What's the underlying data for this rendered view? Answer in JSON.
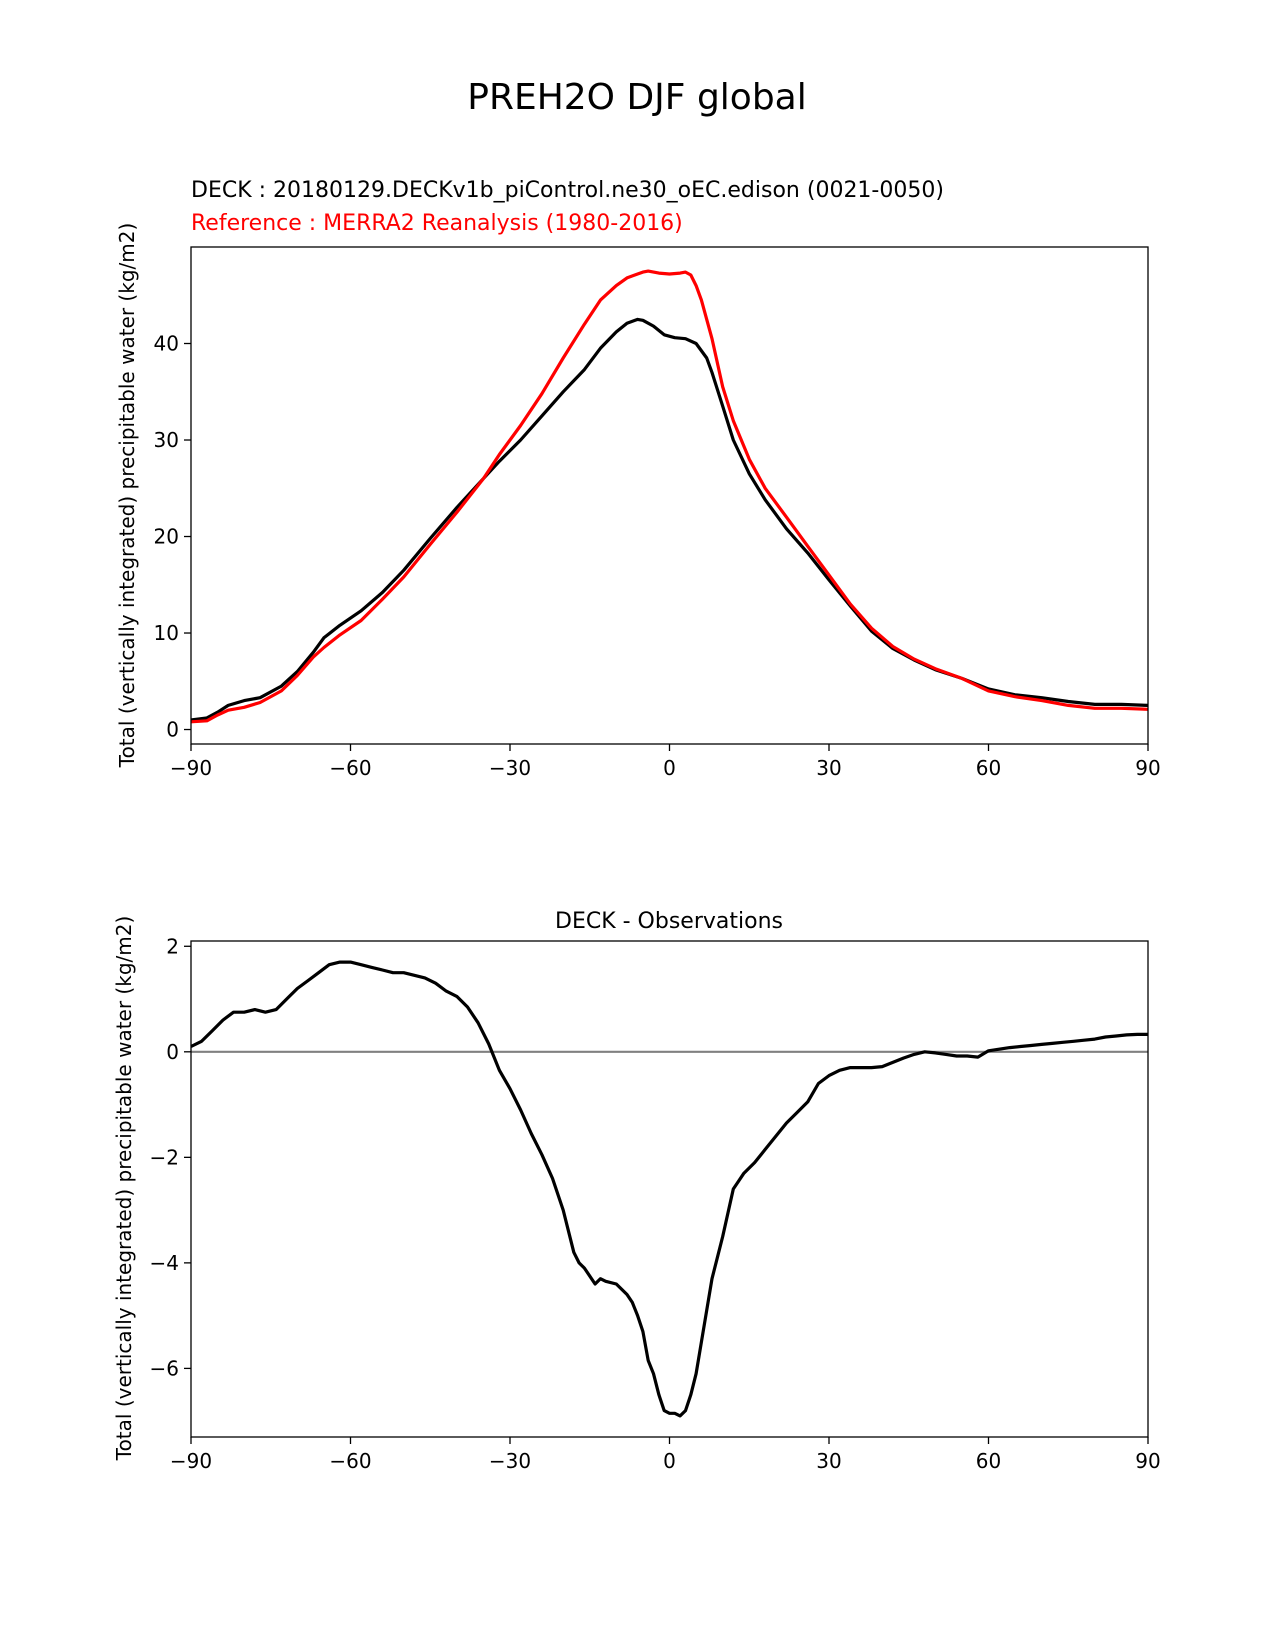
{
  "figure_title": "PREH2O DJF global",
  "panel1_header": {
    "test": "DECK : 20180129.DECKv1b_piControl.ne30_oEC.edison (0021-0050)",
    "reference": "Reference : MERRA2 Reanalysis (1980-2016)"
  },
  "colors": {
    "test": "#000000",
    "reference": "#ff0000",
    "zero_line": "#808080"
  },
  "chart_data": [
    {
      "type": "line",
      "title": "",
      "xlabel": "",
      "ylabel": "Total (vertically integrated) precipitable water (kg/m2)",
      "xlim": [
        -90,
        90
      ],
      "ylim": [
        -1.5,
        50
      ],
      "xticks": [
        -90,
        -60,
        -30,
        0,
        30,
        60,
        90
      ],
      "xtick_labels": [
        "−90",
        "−60",
        "−30",
        "0",
        "30",
        "60",
        "90"
      ],
      "yticks": [
        0,
        10,
        20,
        30,
        40
      ],
      "ytick_labels": [
        "0",
        "10",
        "20",
        "30",
        "40"
      ],
      "series": [
        {
          "name": "DECK",
          "color": "#000000",
          "x": [
            -90,
            -87,
            -85,
            -83,
            -80,
            -77,
            -73,
            -70,
            -67,
            -65,
            -62,
            -58,
            -54,
            -50,
            -45,
            -40,
            -35,
            -32,
            -28,
            -24,
            -20,
            -16,
            -13,
            -10,
            -8,
            -6,
            -5,
            -3,
            -1,
            1,
            3,
            5,
            7,
            8,
            10,
            12,
            15,
            18,
            22,
            26,
            30,
            34,
            38,
            42,
            46,
            50,
            55,
            60,
            65,
            70,
            75,
            80,
            85,
            90
          ],
          "values": [
            1.0,
            1.2,
            1.8,
            2.5,
            3.0,
            3.3,
            4.5,
            6.0,
            8.0,
            9.5,
            10.8,
            12.3,
            14.2,
            16.5,
            19.8,
            23.0,
            26.0,
            27.8,
            30.0,
            32.5,
            35.0,
            37.3,
            39.5,
            41.2,
            42.1,
            42.5,
            42.4,
            41.8,
            40.9,
            40.6,
            40.5,
            40.0,
            38.5,
            37.0,
            33.5,
            30.0,
            26.5,
            23.8,
            20.8,
            18.3,
            15.5,
            12.8,
            10.2,
            8.4,
            7.2,
            6.2,
            5.3,
            4.2,
            3.6,
            3.3,
            2.9,
            2.6,
            2.6,
            2.5
          ]
        },
        {
          "name": "MERRA2",
          "color": "#ff0000",
          "x": [
            -90,
            -87,
            -85,
            -83,
            -80,
            -77,
            -73,
            -70,
            -67,
            -65,
            -62,
            -58,
            -54,
            -50,
            -45,
            -40,
            -35,
            -32,
            -28,
            -24,
            -20,
            -16,
            -13,
            -10,
            -8,
            -6,
            -5,
            -4,
            -2,
            0,
            2,
            3,
            4,
            5,
            6,
            8,
            10,
            12,
            15,
            18,
            22,
            26,
            30,
            34,
            38,
            42,
            46,
            50,
            55,
            60,
            65,
            70,
            75,
            80,
            85,
            90
          ],
          "values": [
            0.8,
            0.9,
            1.5,
            2.0,
            2.3,
            2.8,
            4.0,
            5.6,
            7.5,
            8.5,
            9.8,
            11.3,
            13.5,
            15.8,
            19.2,
            22.5,
            26.0,
            28.5,
            31.5,
            34.8,
            38.5,
            42.0,
            44.5,
            46.0,
            46.8,
            47.2,
            47.4,
            47.5,
            47.3,
            47.2,
            47.3,
            47.4,
            47.1,
            46.0,
            44.5,
            40.5,
            35.5,
            32.0,
            28.0,
            25.0,
            22.0,
            19.0,
            16.0,
            13.0,
            10.5,
            8.6,
            7.3,
            6.3,
            5.3,
            4.0,
            3.4,
            3.0,
            2.5,
            2.2,
            2.2,
            2.1
          ]
        }
      ]
    },
    {
      "type": "line",
      "title": "DECK - Observations",
      "xlabel": "",
      "ylabel": "Total (vertically integrated) precipitable water (kg/m2)",
      "xlim": [
        -90,
        90
      ],
      "ylim": [
        -7.3,
        2.1
      ],
      "xticks": [
        -90,
        -60,
        -30,
        0,
        30,
        60,
        90
      ],
      "xtick_labels": [
        "−90",
        "−60",
        "−30",
        "0",
        "30",
        "60",
        "90"
      ],
      "yticks": [
        2,
        0,
        -2,
        -4,
        -6
      ],
      "ytick_labels": [
        "2",
        "0",
        "−2",
        "−4",
        "−6"
      ],
      "zero_line": 0,
      "series": [
        {
          "name": "DECK - Observations",
          "color": "#000000",
          "x": [
            -90,
            -88,
            -86,
            -84,
            -82,
            -80,
            -78,
            -76,
            -74,
            -72,
            -70,
            -68,
            -66,
            -64,
            -62,
            -60,
            -58,
            -56,
            -54,
            -52,
            -50,
            -48,
            -46,
            -44,
            -42,
            -40,
            -38,
            -36,
            -34,
            -32,
            -30,
            -28,
            -26,
            -24,
            -22,
            -20,
            -18,
            -17,
            -16,
            -14,
            -13,
            -12,
            -10,
            -8,
            -7,
            -6,
            -5,
            -4,
            -3,
            -2,
            -1,
            0,
            1,
            2,
            3,
            4,
            5,
            6,
            7,
            8,
            10,
            12,
            13,
            14,
            16,
            18,
            20,
            22,
            24,
            26,
            28,
            30,
            32,
            34,
            36,
            38,
            40,
            42,
            44,
            46,
            48,
            50,
            52,
            54,
            56,
            58,
            60,
            62,
            64,
            66,
            68,
            70,
            72,
            74,
            76,
            78,
            80,
            82,
            84,
            86,
            88,
            90
          ],
          "values": [
            0.1,
            0.2,
            0.4,
            0.6,
            0.75,
            0.75,
            0.8,
            0.75,
            0.8,
            1.0,
            1.2,
            1.35,
            1.5,
            1.65,
            1.7,
            1.7,
            1.65,
            1.6,
            1.55,
            1.5,
            1.5,
            1.45,
            1.4,
            1.3,
            1.15,
            1.05,
            0.85,
            0.55,
            0.15,
            -0.35,
            -0.7,
            -1.1,
            -1.55,
            -1.95,
            -2.4,
            -3.0,
            -3.8,
            -4.0,
            -4.1,
            -4.4,
            -4.3,
            -4.35,
            -4.4,
            -4.6,
            -4.75,
            -5.0,
            -5.3,
            -5.85,
            -6.1,
            -6.5,
            -6.8,
            -6.85,
            -6.85,
            -6.9,
            -6.8,
            -6.5,
            -6.1,
            -5.5,
            -4.9,
            -4.3,
            -3.5,
            -2.6,
            -2.45,
            -2.3,
            -2.1,
            -1.85,
            -1.6,
            -1.35,
            -1.15,
            -0.95,
            -0.6,
            -0.45,
            -0.35,
            -0.3,
            -0.3,
            -0.3,
            -0.28,
            -0.2,
            -0.12,
            -0.05,
            0.0,
            -0.02,
            -0.05,
            -0.08,
            -0.08,
            -0.1,
            0.02,
            0.05,
            0.08,
            0.1,
            0.12,
            0.14,
            0.16,
            0.18,
            0.2,
            0.22,
            0.24,
            0.28,
            0.3,
            0.32,
            0.33,
            0.33
          ]
        }
      ]
    }
  ]
}
